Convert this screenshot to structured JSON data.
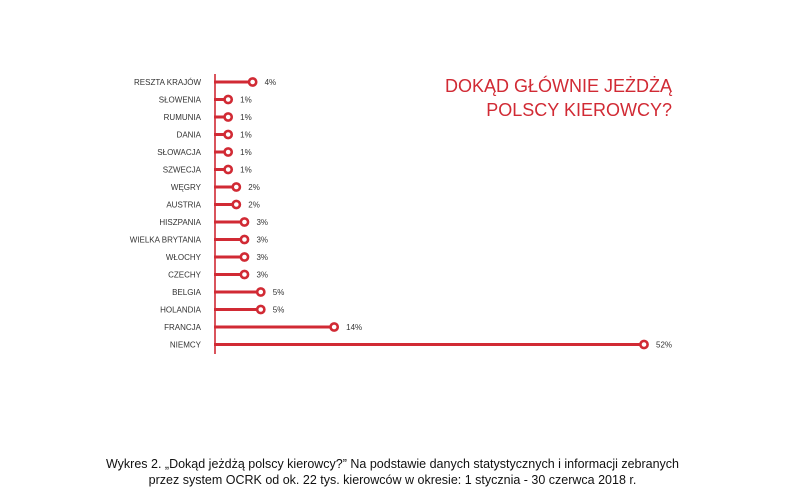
{
  "chart_data": {
    "type": "bar",
    "title_lines": [
      "DOKĄD GŁÓWNIE JEŻDŻĄ",
      "POLSCY KIEROWCY?"
    ],
    "categories": [
      "RESZTA KRAJÓW",
      "SŁOWENIA",
      "RUMUNIA",
      "DANIA",
      "SŁOWACJA",
      "SZWECJA",
      "WĘGRY",
      "AUSTRIA",
      "HISZPANIA",
      "WIELKA BRYTANIA",
      "WŁOCHY",
      "CZECHY",
      "BELGIA",
      "HOLANDIA",
      "FRANCJA",
      "NIEMCY"
    ],
    "values": [
      4,
      1,
      1,
      1,
      1,
      1,
      2,
      2,
      3,
      3,
      3,
      3,
      5,
      5,
      14,
      52
    ],
    "value_labels": [
      "4%",
      "1%",
      "1%",
      "1%",
      "1%",
      "1%",
      "2%",
      "2%",
      "3%",
      "3%",
      "3%",
      "3%",
      "5%",
      "5%",
      "14%",
      "52%"
    ],
    "xlim": [
      0,
      52
    ],
    "orientation": "horizontal",
    "grid": false,
    "legend": "none",
    "color": "#d12a34"
  },
  "caption": {
    "line1": "Wykres 2. „Dokąd jeżdżą polscy kierowcy?” Na podstawie danych statystycznych i informacji zebranych",
    "line2": "przez system OCRK od ok. 22 tys. kierowców w okresie: 1 stycznia - 30 czerwca 2018 r."
  }
}
